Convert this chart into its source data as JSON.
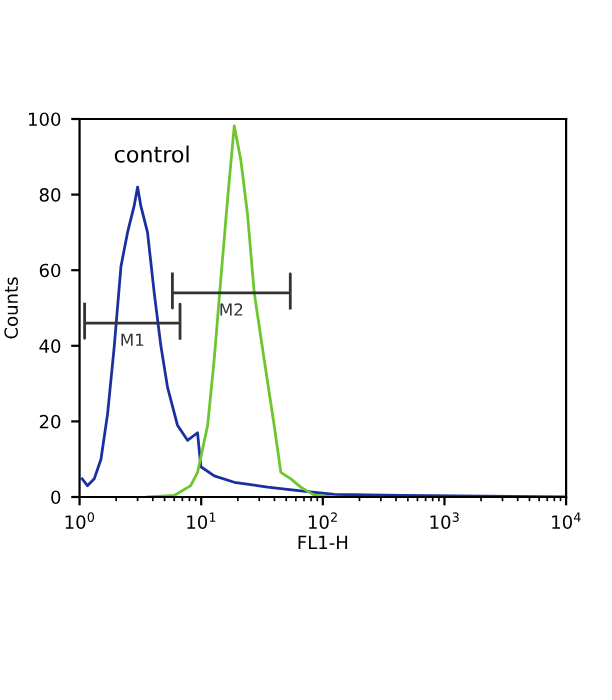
{
  "chart_data": {
    "type": "line",
    "xlabel": "FL1-H",
    "ylabel": "Counts",
    "log": "x",
    "xlim": [
      1,
      10000
    ],
    "xticks": [
      {
        "value": 1,
        "label": "10$^{0}$"
      },
      {
        "value": 10,
        "label": "10$^{1}$"
      },
      {
        "value": 100,
        "label": "10$^{2}$"
      },
      {
        "value": 1000,
        "label": "10$^{3}$"
      },
      {
        "value": 10000,
        "label": "10$^{4}$"
      }
    ],
    "ylim": [
      0,
      100
    ],
    "yticks": [
      0,
      20,
      40,
      60,
      80,
      100
    ],
    "grid": false,
    "legend": false,
    "marker": "none",
    "line_style": "solid",
    "annotations": [
      "control"
    ],
    "series": [
      {
        "color": "#1a2fa0",
        "x": [
          1.05,
          1.16,
          1.32,
          1.5,
          1.7,
          1.93,
          2.19,
          2.48,
          2.81,
          3.0,
          3.19,
          3.62,
          4.11,
          4.66,
          5.29,
          6.38,
          7.72,
          9.33,
          9.94,
          12.8,
          18.7,
          35.1,
          65.9,
          124,
          438,
          10000
        ],
        "values": [
          4.8,
          3,
          4.8,
          10,
          22,
          40,
          61,
          70,
          77,
          82,
          77,
          70,
          54,
          40,
          29,
          19,
          15,
          17,
          8,
          5.6,
          3.9,
          2.6,
          1.6,
          0.7,
          0.4,
          0
        ]
      },
      {
        "color": "#6cc62c",
        "x": [
          3.62,
          6.0,
          8.2,
          9.33,
          11.3,
          12.8,
          14.5,
          16.5,
          18.7,
          21.2,
          24.0,
          27.3,
          32.9,
          39.8,
          45.2,
          54.6,
          65.9,
          84.9,
          124
        ],
        "values": [
          0,
          0.4,
          3,
          6.5,
          19,
          36.5,
          57.7,
          79,
          98.2,
          89,
          75,
          54,
          36.5,
          19,
          6.5,
          4.8,
          2.6,
          0.5,
          0
        ]
      },
      {
        "name": "M1",
        "color": "#333333",
        "x": [
          1.1,
          1.1,
          1.1,
          6.7,
          6.7,
          6.7
        ],
        "values": [
          51,
          42,
          46,
          46,
          51,
          42
        ]
      },
      {
        "name": "M2",
        "color": "#333333",
        "x": [
          5.8,
          5.8,
          5.8,
          54,
          54,
          54
        ],
        "values": [
          59,
          50,
          54,
          54,
          59,
          50
        ]
      }
    ]
  }
}
